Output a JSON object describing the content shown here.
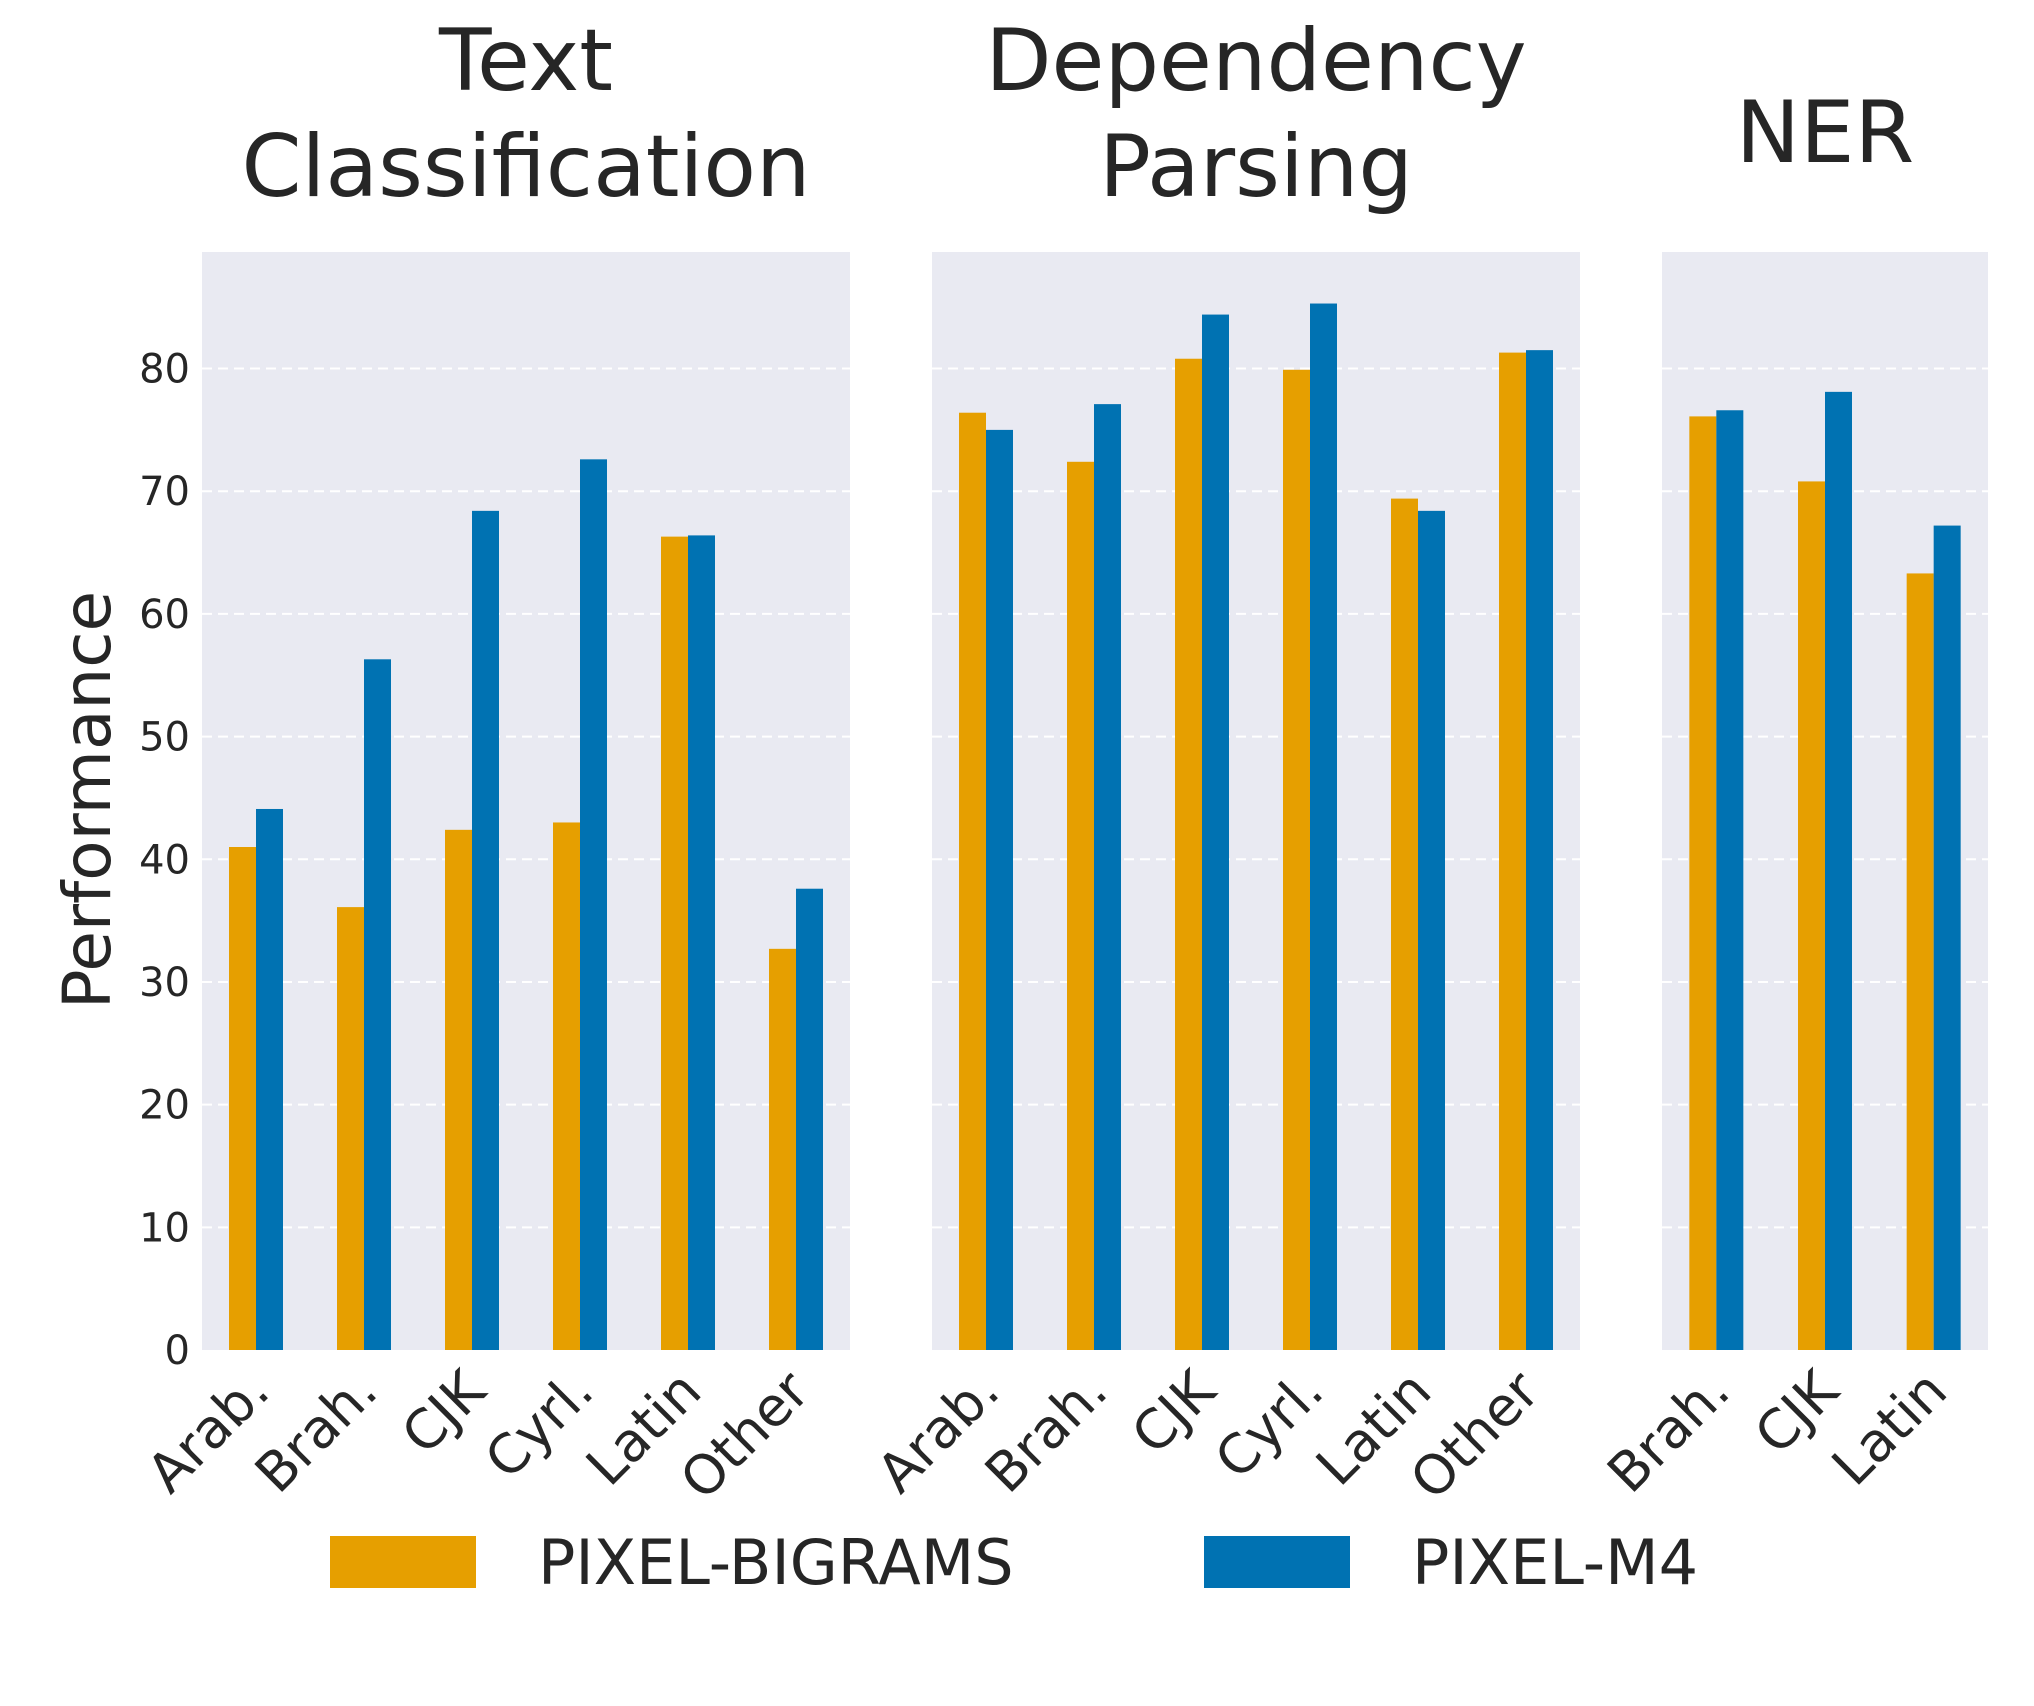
{
  "chart_data": {
    "type": "bar",
    "ylabel": "Performance",
    "ylim": [
      0,
      89.5
    ],
    "yticks": [
      0,
      10,
      20,
      30,
      40,
      50,
      60,
      70,
      80
    ],
    "grid": true,
    "legend_position": "bottom-center",
    "colors": {
      "PIXEL-BIGRAMS": "#e69f00",
      "PIXEL-M4": "#0072b2"
    },
    "series_names": [
      "PIXEL-BIGRAMS",
      "PIXEL-M4"
    ],
    "panels": [
      {
        "title": [
          "Text",
          "Classification"
        ],
        "categories": [
          "Arab.",
          "Brah.",
          "CJK",
          "Cyrl.",
          "Latin",
          "Other"
        ],
        "series": [
          {
            "name": "PIXEL-BIGRAMS",
            "values": [
              41.0,
              36.1,
              42.4,
              43.0,
              66.3,
              32.7
            ]
          },
          {
            "name": "PIXEL-M4",
            "values": [
              44.1,
              56.3,
              68.4,
              72.6,
              66.4,
              37.6
            ]
          }
        ]
      },
      {
        "title": [
          "Dependency",
          "Parsing"
        ],
        "categories": [
          "Arab.",
          "Brah.",
          "CJK",
          "Cyrl.",
          "Latin",
          "Other"
        ],
        "series": [
          {
            "name": "PIXEL-BIGRAMS",
            "values": [
              76.4,
              72.4,
              80.8,
              79.9,
              69.4,
              81.3
            ]
          },
          {
            "name": "PIXEL-M4",
            "values": [
              75.0,
              77.1,
              84.4,
              85.3,
              68.4,
              81.5
            ]
          }
        ]
      },
      {
        "title": [
          "NER"
        ],
        "categories": [
          "Brah.",
          "CJK",
          "Latin"
        ],
        "series": [
          {
            "name": "PIXEL-BIGRAMS",
            "values": [
              76.1,
              70.8,
              63.3
            ]
          },
          {
            "name": "PIXEL-M4",
            "values": [
              76.6,
              78.1,
              67.2
            ]
          }
        ]
      }
    ]
  }
}
